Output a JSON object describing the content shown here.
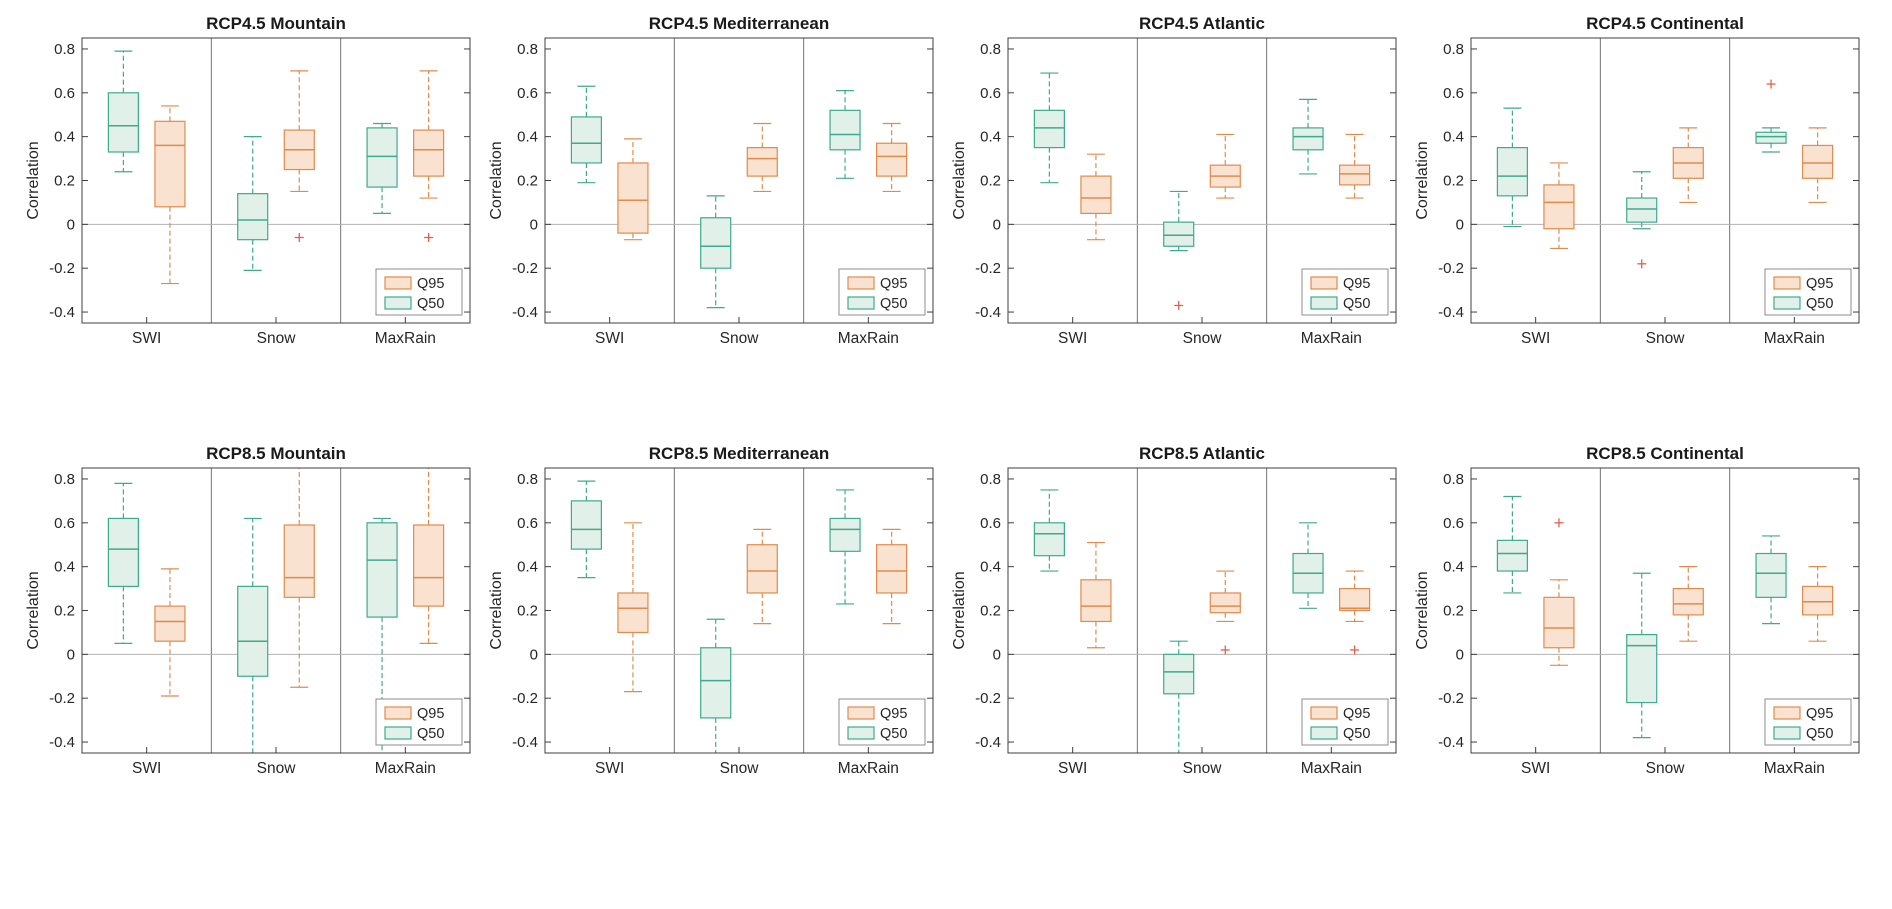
{
  "page": {
    "background": "#ffffff"
  },
  "chart_data": {
    "type": "boxplot",
    "grid": {
      "rows": 2,
      "cols": 4
    },
    "ylabel": "Correlation",
    "ylim": [
      -0.45,
      0.85
    ],
    "yticks": [
      0.8,
      0.6,
      0.4,
      0.2,
      0,
      -0.2,
      -0.4
    ],
    "categories": [
      "SWI",
      "Snow",
      "MaxRain"
    ],
    "series_order": [
      "Q50",
      "Q95"
    ],
    "legend": [
      {
        "name": "Q95",
        "fill": "#f9e2cf",
        "stroke": "#e08b4e"
      },
      {
        "name": "Q50",
        "fill": "#e1f0e9",
        "stroke": "#3faa8d"
      }
    ],
    "outlier_color": "#e4604e",
    "zero_line": true,
    "subplots": [
      {
        "title": "RCP4.5 Mountain",
        "boxes": [
          {
            "category": "SWI",
            "series": "Q50",
            "whislo": 0.24,
            "q1": 0.33,
            "med": 0.45,
            "q3": 0.6,
            "whishi": 0.79,
            "outliers": []
          },
          {
            "category": "SWI",
            "series": "Q95",
            "whislo": -0.27,
            "q1": 0.08,
            "med": 0.36,
            "q3": 0.47,
            "whishi": 0.54,
            "outliers": []
          },
          {
            "category": "Snow",
            "series": "Q50",
            "whislo": -0.21,
            "q1": -0.07,
            "med": 0.02,
            "q3": 0.14,
            "whishi": 0.4,
            "outliers": []
          },
          {
            "category": "Snow",
            "series": "Q95",
            "whislo": 0.15,
            "q1": 0.25,
            "med": 0.34,
            "q3": 0.43,
            "whishi": 0.7,
            "outliers": [
              -0.06
            ]
          },
          {
            "category": "MaxRain",
            "series": "Q50",
            "whislo": 0.05,
            "q1": 0.17,
            "med": 0.31,
            "q3": 0.44,
            "whishi": 0.46,
            "outliers": []
          },
          {
            "category": "MaxRain",
            "series": "Q95",
            "whislo": 0.12,
            "q1": 0.22,
            "med": 0.34,
            "q3": 0.43,
            "whishi": 0.7,
            "outliers": [
              -0.06
            ]
          }
        ]
      },
      {
        "title": "RCP4.5 Mediterranean",
        "boxes": [
          {
            "category": "SWI",
            "series": "Q50",
            "whislo": 0.19,
            "q1": 0.28,
            "med": 0.37,
            "q3": 0.49,
            "whishi": 0.63,
            "outliers": []
          },
          {
            "category": "SWI",
            "series": "Q95",
            "whislo": -0.07,
            "q1": -0.04,
            "med": 0.11,
            "q3": 0.28,
            "whishi": 0.39,
            "outliers": []
          },
          {
            "category": "Snow",
            "series": "Q50",
            "whislo": -0.38,
            "q1": -0.2,
            "med": -0.1,
            "q3": 0.03,
            "whishi": 0.13,
            "outliers": []
          },
          {
            "category": "Snow",
            "series": "Q95",
            "whislo": 0.15,
            "q1": 0.22,
            "med": 0.3,
            "q3": 0.35,
            "whishi": 0.46,
            "outliers": []
          },
          {
            "category": "MaxRain",
            "series": "Q50",
            "whislo": 0.21,
            "q1": 0.34,
            "med": 0.41,
            "q3": 0.52,
            "whishi": 0.61,
            "outliers": []
          },
          {
            "category": "MaxRain",
            "series": "Q95",
            "whislo": 0.15,
            "q1": 0.22,
            "med": 0.31,
            "q3": 0.37,
            "whishi": 0.46,
            "outliers": []
          }
        ]
      },
      {
        "title": "RCP4.5 Atlantic",
        "boxes": [
          {
            "category": "SWI",
            "series": "Q50",
            "whislo": 0.19,
            "q1": 0.35,
            "med": 0.44,
            "q3": 0.52,
            "whishi": 0.69,
            "outliers": []
          },
          {
            "category": "SWI",
            "series": "Q95",
            "whislo": -0.07,
            "q1": 0.05,
            "med": 0.12,
            "q3": 0.22,
            "whishi": 0.32,
            "outliers": []
          },
          {
            "category": "Snow",
            "series": "Q50",
            "whislo": -0.12,
            "q1": -0.1,
            "med": -0.05,
            "q3": 0.01,
            "whishi": 0.15,
            "outliers": [
              -0.37
            ]
          },
          {
            "category": "Snow",
            "series": "Q95",
            "whislo": 0.12,
            "q1": 0.17,
            "med": 0.22,
            "q3": 0.27,
            "whishi": 0.41,
            "outliers": []
          },
          {
            "category": "MaxRain",
            "series": "Q50",
            "whislo": 0.23,
            "q1": 0.34,
            "med": 0.4,
            "q3": 0.44,
            "whishi": 0.57,
            "outliers": []
          },
          {
            "category": "MaxRain",
            "series": "Q95",
            "whislo": 0.12,
            "q1": 0.18,
            "med": 0.23,
            "q3": 0.27,
            "whishi": 0.41,
            "outliers": []
          }
        ]
      },
      {
        "title": "RCP4.5 Continental",
        "boxes": [
          {
            "category": "SWI",
            "series": "Q50",
            "whislo": -0.01,
            "q1": 0.13,
            "med": 0.22,
            "q3": 0.35,
            "whishi": 0.53,
            "outliers": []
          },
          {
            "category": "SWI",
            "series": "Q95",
            "whislo": -0.11,
            "q1": -0.02,
            "med": 0.1,
            "q3": 0.18,
            "whishi": 0.28,
            "outliers": []
          },
          {
            "category": "Snow",
            "series": "Q50",
            "whislo": -0.02,
            "q1": 0.01,
            "med": 0.07,
            "q3": 0.12,
            "whishi": 0.24,
            "outliers": [
              -0.18
            ]
          },
          {
            "category": "Snow",
            "series": "Q95",
            "whislo": 0.1,
            "q1": 0.21,
            "med": 0.28,
            "q3": 0.35,
            "whishi": 0.44,
            "outliers": []
          },
          {
            "category": "MaxRain",
            "series": "Q50",
            "whislo": 0.33,
            "q1": 0.37,
            "med": 0.4,
            "q3": 0.42,
            "whishi": 0.44,
            "outliers": [
              0.64
            ]
          },
          {
            "category": "MaxRain",
            "series": "Q95",
            "whislo": 0.1,
            "q1": 0.21,
            "med": 0.28,
            "q3": 0.36,
            "whishi": 0.44,
            "outliers": []
          }
        ]
      },
      {
        "title": "RCP8.5 Mountain",
        "boxes": [
          {
            "category": "SWI",
            "series": "Q50",
            "whislo": 0.05,
            "q1": 0.31,
            "med": 0.48,
            "q3": 0.62,
            "whishi": 0.78,
            "outliers": []
          },
          {
            "category": "SWI",
            "series": "Q95",
            "whislo": -0.19,
            "q1": 0.06,
            "med": 0.15,
            "q3": 0.22,
            "whishi": 0.39,
            "outliers": []
          },
          {
            "category": "Snow",
            "series": "Q50",
            "whislo": -0.45,
            "q1": -0.1,
            "med": 0.06,
            "q3": 0.31,
            "whishi": 0.62,
            "outliers": []
          },
          {
            "category": "Snow",
            "series": "Q95",
            "whislo": -0.15,
            "q1": 0.26,
            "med": 0.35,
            "q3": 0.59,
            "whishi": 0.85,
            "outliers": []
          },
          {
            "category": "MaxRain",
            "series": "Q50",
            "whislo": -0.45,
            "q1": 0.17,
            "med": 0.43,
            "q3": 0.6,
            "whishi": 0.62,
            "outliers": []
          },
          {
            "category": "MaxRain",
            "series": "Q95",
            "whislo": 0.05,
            "q1": 0.22,
            "med": 0.35,
            "q3": 0.59,
            "whishi": 0.85,
            "outliers": []
          }
        ]
      },
      {
        "title": "RCP8.5 Mediterranean",
        "boxes": [
          {
            "category": "SWI",
            "series": "Q50",
            "whislo": 0.35,
            "q1": 0.48,
            "med": 0.57,
            "q3": 0.7,
            "whishi": 0.79,
            "outliers": []
          },
          {
            "category": "SWI",
            "series": "Q95",
            "whislo": -0.17,
            "q1": 0.1,
            "med": 0.21,
            "q3": 0.28,
            "whishi": 0.6,
            "outliers": []
          },
          {
            "category": "Snow",
            "series": "Q50",
            "whislo": -0.45,
            "q1": -0.29,
            "med": -0.12,
            "q3": 0.03,
            "whishi": 0.16,
            "outliers": []
          },
          {
            "category": "Snow",
            "series": "Q95",
            "whislo": 0.14,
            "q1": 0.28,
            "med": 0.38,
            "q3": 0.5,
            "whishi": 0.57,
            "outliers": []
          },
          {
            "category": "MaxRain",
            "series": "Q50",
            "whislo": 0.23,
            "q1": 0.47,
            "med": 0.57,
            "q3": 0.62,
            "whishi": 0.75,
            "outliers": []
          },
          {
            "category": "MaxRain",
            "series": "Q95",
            "whislo": 0.14,
            "q1": 0.28,
            "med": 0.38,
            "q3": 0.5,
            "whishi": 0.57,
            "outliers": []
          }
        ]
      },
      {
        "title": "RCP8.5 Atlantic",
        "boxes": [
          {
            "category": "SWI",
            "series": "Q50",
            "whislo": 0.38,
            "q1": 0.45,
            "med": 0.55,
            "q3": 0.6,
            "whishi": 0.75,
            "outliers": []
          },
          {
            "category": "SWI",
            "series": "Q95",
            "whislo": 0.03,
            "q1": 0.15,
            "med": 0.22,
            "q3": 0.34,
            "whishi": 0.51,
            "outliers": []
          },
          {
            "category": "Snow",
            "series": "Q50",
            "whislo": -0.45,
            "q1": -0.18,
            "med": -0.08,
            "q3": 0.0,
            "whishi": 0.06,
            "outliers": []
          },
          {
            "category": "Snow",
            "series": "Q95",
            "whislo": 0.15,
            "q1": 0.19,
            "med": 0.22,
            "q3": 0.28,
            "whishi": 0.38,
            "outliers": [
              0.02
            ]
          },
          {
            "category": "MaxRain",
            "series": "Q50",
            "whislo": 0.21,
            "q1": 0.28,
            "med": 0.37,
            "q3": 0.46,
            "whishi": 0.6,
            "outliers": []
          },
          {
            "category": "MaxRain",
            "series": "Q95",
            "whislo": 0.15,
            "q1": 0.2,
            "med": 0.21,
            "q3": 0.3,
            "whishi": 0.38,
            "outliers": [
              0.02
            ]
          }
        ]
      },
      {
        "title": "RCP8.5 Continental",
        "boxes": [
          {
            "category": "SWI",
            "series": "Q50",
            "whislo": 0.28,
            "q1": 0.38,
            "med": 0.46,
            "q3": 0.52,
            "whishi": 0.72,
            "outliers": []
          },
          {
            "category": "SWI",
            "series": "Q95",
            "whislo": -0.05,
            "q1": 0.03,
            "med": 0.12,
            "q3": 0.26,
            "whishi": 0.34,
            "outliers": [
              0.6
            ]
          },
          {
            "category": "Snow",
            "series": "Q50",
            "whislo": -0.38,
            "q1": -0.22,
            "med": 0.04,
            "q3": 0.09,
            "whishi": 0.37,
            "outliers": []
          },
          {
            "category": "Snow",
            "series": "Q95",
            "whislo": 0.06,
            "q1": 0.18,
            "med": 0.23,
            "q3": 0.3,
            "whishi": 0.4,
            "outliers": []
          },
          {
            "category": "MaxRain",
            "series": "Q50",
            "whislo": 0.14,
            "q1": 0.26,
            "med": 0.37,
            "q3": 0.46,
            "whishi": 0.54,
            "outliers": []
          },
          {
            "category": "MaxRain",
            "series": "Q95",
            "whislo": 0.06,
            "q1": 0.18,
            "med": 0.24,
            "q3": 0.31,
            "whishi": 0.4,
            "outliers": []
          }
        ]
      }
    ]
  }
}
